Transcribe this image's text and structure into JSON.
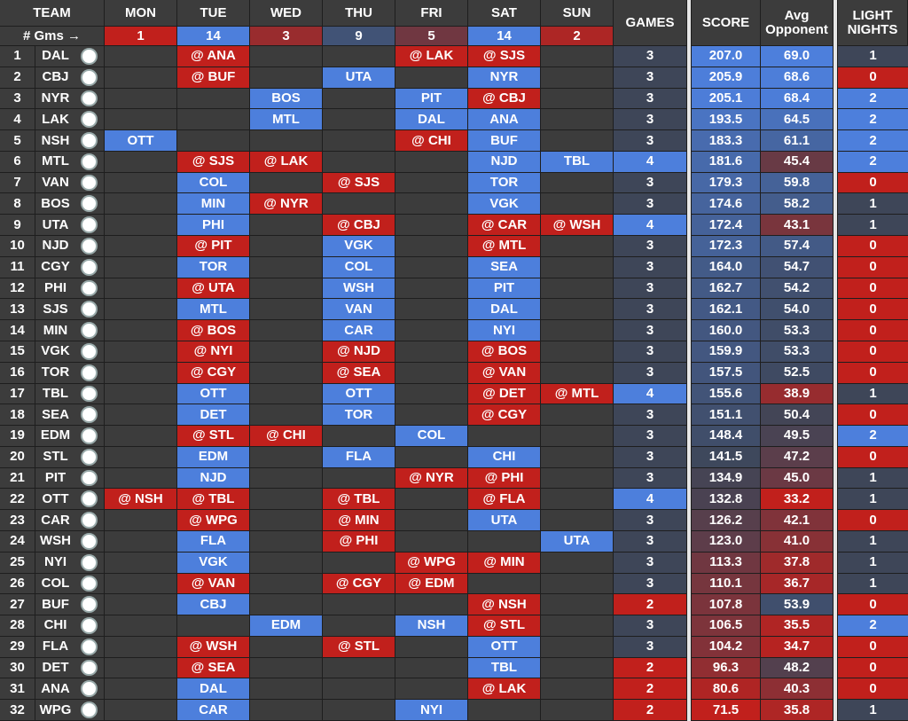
{
  "header": {
    "team": "TEAM",
    "days": [
      "MON",
      "TUE",
      "WED",
      "THU",
      "FRI",
      "SAT",
      "SUN"
    ],
    "games": "GAMES",
    "score": "SCORE",
    "avg": [
      "Avg",
      "Opponent"
    ],
    "light": [
      "LIGHT",
      "NIGHTS"
    ],
    "gms_label": "# Gms →",
    "day_counts": [
      1,
      14,
      3,
      9,
      5,
      14,
      2
    ]
  },
  "rows": [
    [
      1,
      "DAL",
      null,
      "@ ANA",
      null,
      null,
      "@ LAK",
      "@ SJS",
      null,
      3,
      "207.0",
      "69.0",
      1
    ],
    [
      2,
      "CBJ",
      null,
      "@ BUF",
      null,
      "UTA",
      null,
      "NYR",
      null,
      3,
      "205.9",
      "68.6",
      0
    ],
    [
      3,
      "NYR",
      null,
      null,
      "BOS",
      null,
      "PIT",
      "@ CBJ",
      null,
      3,
      "205.1",
      "68.4",
      2
    ],
    [
      4,
      "LAK",
      null,
      null,
      "MTL",
      null,
      "DAL",
      "ANA",
      null,
      3,
      "193.5",
      "64.5",
      2
    ],
    [
      5,
      "NSH",
      "OTT",
      null,
      null,
      null,
      "@ CHI",
      "BUF",
      null,
      3,
      "183.3",
      "61.1",
      2
    ],
    [
      6,
      "MTL",
      null,
      "@ SJS",
      "@ LAK",
      null,
      null,
      "NJD",
      "TBL",
      4,
      "181.6",
      "45.4",
      2
    ],
    [
      7,
      "VAN",
      null,
      "COL",
      null,
      "@ SJS",
      null,
      "TOR",
      null,
      3,
      "179.3",
      "59.8",
      0
    ],
    [
      8,
      "BOS",
      null,
      "MIN",
      "@ NYR",
      null,
      null,
      "VGK",
      null,
      3,
      "174.6",
      "58.2",
      1
    ],
    [
      9,
      "UTA",
      null,
      "PHI",
      null,
      "@ CBJ",
      null,
      "@ CAR",
      "@ WSH",
      4,
      "172.4",
      "43.1",
      1
    ],
    [
      10,
      "NJD",
      null,
      "@ PIT",
      null,
      "VGK",
      null,
      "@ MTL",
      null,
      3,
      "172.3",
      "57.4",
      0
    ],
    [
      11,
      "CGY",
      null,
      "TOR",
      null,
      "COL",
      null,
      "SEA",
      null,
      3,
      "164.0",
      "54.7",
      0
    ],
    [
      12,
      "PHI",
      null,
      "@ UTA",
      null,
      "WSH",
      null,
      "PIT",
      null,
      3,
      "162.7",
      "54.2",
      0
    ],
    [
      13,
      "SJS",
      null,
      "MTL",
      null,
      "VAN",
      null,
      "DAL",
      null,
      3,
      "162.1",
      "54.0",
      0
    ],
    [
      14,
      "MIN",
      null,
      "@ BOS",
      null,
      "CAR",
      null,
      "NYI",
      null,
      3,
      "160.0",
      "53.3",
      0
    ],
    [
      15,
      "VGK",
      null,
      "@ NYI",
      null,
      "@ NJD",
      null,
      "@ BOS",
      null,
      3,
      "159.9",
      "53.3",
      0
    ],
    [
      16,
      "TOR",
      null,
      "@ CGY",
      null,
      "@ SEA",
      null,
      "@ VAN",
      null,
      3,
      "157.5",
      "52.5",
      0
    ],
    [
      17,
      "TBL",
      null,
      "OTT",
      null,
      "OTT",
      null,
      "@ DET",
      "@ MTL",
      4,
      "155.6",
      "38.9",
      1
    ],
    [
      18,
      "SEA",
      null,
      "DET",
      null,
      "TOR",
      null,
      "@ CGY",
      null,
      3,
      "151.1",
      "50.4",
      0
    ],
    [
      19,
      "EDM",
      null,
      "@ STL",
      "@ CHI",
      null,
      "COL",
      null,
      null,
      3,
      "148.4",
      "49.5",
      2
    ],
    [
      20,
      "STL",
      null,
      "EDM",
      null,
      "FLA",
      null,
      "CHI",
      null,
      3,
      "141.5",
      "47.2",
      0
    ],
    [
      21,
      "PIT",
      null,
      "NJD",
      null,
      null,
      "@ NYR",
      "@ PHI",
      null,
      3,
      "134.9",
      "45.0",
      1
    ],
    [
      22,
      "OTT",
      "@ NSH",
      "@ TBL",
      null,
      "@ TBL",
      null,
      "@ FLA",
      null,
      4,
      "132.8",
      "33.2",
      1
    ],
    [
      23,
      "CAR",
      null,
      "@ WPG",
      null,
      "@ MIN",
      null,
      "UTA",
      null,
      3,
      "126.2",
      "42.1",
      0
    ],
    [
      24,
      "WSH",
      null,
      "FLA",
      null,
      "@ PHI",
      null,
      null,
      "UTA",
      3,
      "123.0",
      "41.0",
      1
    ],
    [
      25,
      "NYI",
      null,
      "VGK",
      null,
      null,
      "@ WPG",
      "@ MIN",
      null,
      3,
      "113.3",
      "37.8",
      1
    ],
    [
      26,
      "COL",
      null,
      "@ VAN",
      null,
      "@ CGY",
      "@ EDM",
      null,
      null,
      3,
      "110.1",
      "36.7",
      1
    ],
    [
      27,
      "BUF",
      null,
      "CBJ",
      null,
      null,
      null,
      "@ NSH",
      null,
      2,
      "107.8",
      "53.9",
      0
    ],
    [
      28,
      "CHI",
      null,
      null,
      "EDM",
      null,
      "NSH",
      "@ STL",
      null,
      3,
      "106.5",
      "35.5",
      2
    ],
    [
      29,
      "FLA",
      null,
      "@ WSH",
      null,
      "@ STL",
      null,
      "OTT",
      null,
      3,
      "104.2",
      "34.7",
      0
    ],
    [
      30,
      "DET",
      null,
      "@ SEA",
      null,
      null,
      null,
      "TBL",
      null,
      2,
      "96.3",
      "48.2",
      0
    ],
    [
      31,
      "ANA",
      null,
      "DAL",
      null,
      null,
      null,
      "@ LAK",
      null,
      2,
      "80.6",
      "40.3",
      0
    ],
    [
      32,
      "WPG",
      null,
      "CAR",
      null,
      null,
      "NYI",
      null,
      null,
      2,
      "71.5",
      "35.8",
      1
    ]
  ]
}
